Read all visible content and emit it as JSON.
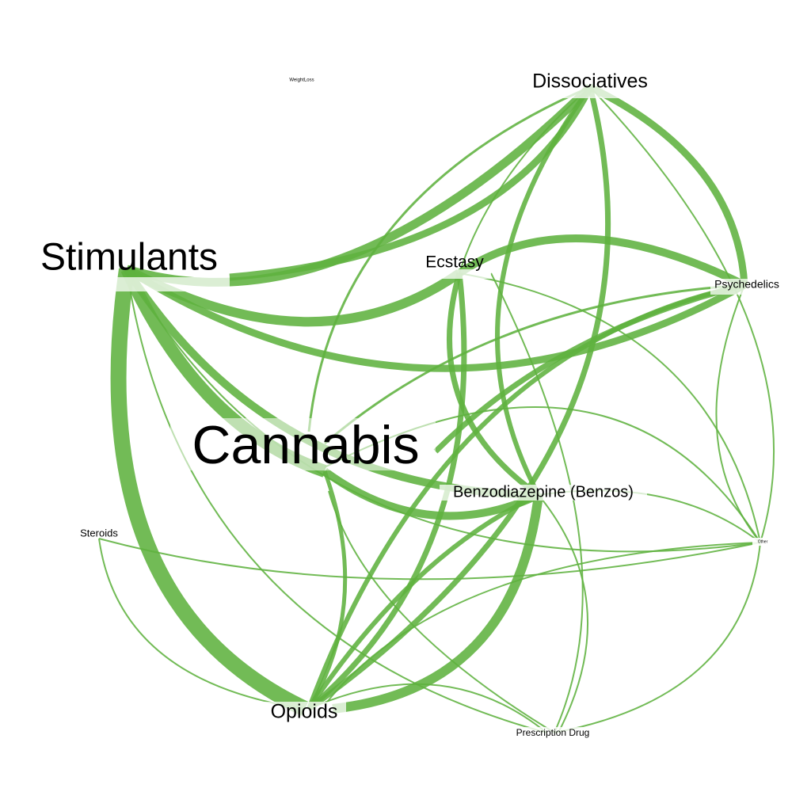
{
  "graph": {
    "edge_color": "#5fb23f",
    "node_bg": "#ffffff",
    "nodes": [
      {
        "id": "weight",
        "label": "WeightLoss"
      },
      {
        "id": "dissociatives",
        "label": "Dissociatives"
      },
      {
        "id": "stimulants",
        "label": "Stimulants"
      },
      {
        "id": "ecstasy",
        "label": "Ecstasy"
      },
      {
        "id": "psychedelics",
        "label": "Psychedelics"
      },
      {
        "id": "cannabis",
        "label": "Cannabis"
      },
      {
        "id": "benzos",
        "label": "Benzodiazepine (Benzos)"
      },
      {
        "id": "steroids",
        "label": "Steroids"
      },
      {
        "id": "other",
        "label": "Other"
      },
      {
        "id": "opioids",
        "label": "Opioids"
      },
      {
        "id": "prescription",
        "label": "Prescription Drug"
      }
    ]
  }
}
